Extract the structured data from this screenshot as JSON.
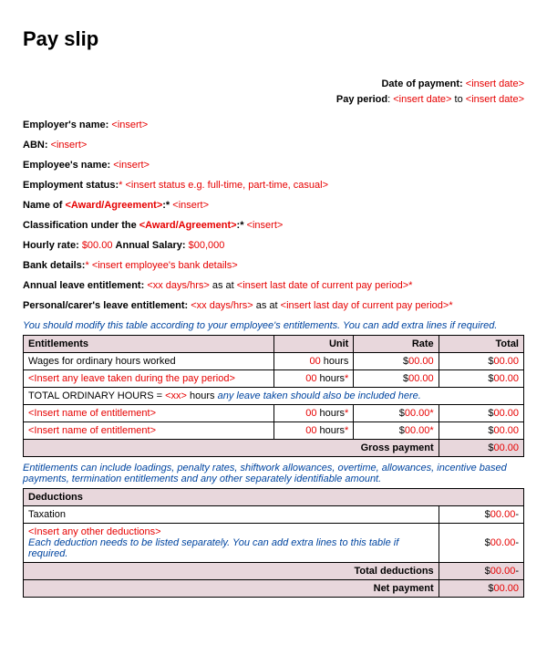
{
  "title": "Pay slip",
  "header": {
    "date_label": "Date of payment:",
    "date_value": "<insert date>",
    "period_label": "Pay period",
    "period_from": "<insert date>",
    "period_to_word": "to",
    "period_to": "<insert date>"
  },
  "fields": {
    "employer_label": "Employer's name:",
    "employer_value": "<insert>",
    "abn_label": "ABN:",
    "abn_value": "<insert>",
    "employee_label": "Employee's name:",
    "employee_value": "<insert>",
    "status_label": "Employment status:",
    "status_star": "*",
    "status_value": "<insert status e.g. full-time, part-time, casual>",
    "award_name_label_prefix": "Name of ",
    "award_name_label_red": "<Award/Agreement>",
    "award_name_label_suffix": ":*",
    "award_name_value": "<insert>",
    "class_label_prefix": "Classification under the ",
    "class_label_red": "<Award/Agreement>",
    "class_label_suffix": ":*",
    "class_value": "<insert>",
    "hourly_label": "Hourly rate:",
    "hourly_value": "$00.00",
    "salary_label": "Annual Salary:",
    "salary_value": "$00,000",
    "bank_label": "Bank details:",
    "bank_star": "*",
    "bank_value": "<insert employee's bank details>",
    "annual_leave_label": "Annual leave entitlement:",
    "annual_leave_xx": "<xx days/hrs>",
    "annual_leave_asat": " as at ",
    "annual_leave_date": "<insert last date of current pay period>",
    "annual_leave_star": "*",
    "personal_leave_label": "Personal/carer's leave entitlement:",
    "personal_leave_xx": "<xx days/hrs>",
    "personal_leave_asat": " as at ",
    "personal_leave_date": "<insert last day of current pay period>",
    "personal_leave_star": "*"
  },
  "note1": "You should modify this table according to your employee's entitlements. You can add extra lines if required.",
  "entitlements": {
    "h1": "Entitlements",
    "h2": "Unit",
    "h3": "Rate",
    "h4": "Total",
    "r1_label": "Wages for ordinary hours worked",
    "r1_unit_pre": "00",
    "r1_unit_suf": " hours",
    "r1_rate": "$00.00",
    "r1_total": "$00.00",
    "r2_label": "<Insert any leave taken during the pay period>",
    "r2_unit_pre": "00",
    "r2_unit_suf": " hours",
    "r2_star": "*",
    "r2_rate": "$00.00",
    "r2_total": "$00.00",
    "r3_prefix": "TOTAL ORDINARY HOURS = ",
    "r3_xx": "<xx>",
    "r3_mid": " hours ",
    "r3_blue": "any leave taken should also be included here.",
    "r4_label": "<Insert name of entitlement>",
    "r4_unit_pre": "00",
    "r4_unit_suf": " hours",
    "r4_star": "*",
    "r4_rate": "$00.00",
    "r4_rate_star": "*",
    "r4_total": "$00.00",
    "r5_label": "<Insert name of entitlement>",
    "r5_unit_pre": "00",
    "r5_unit_suf": " hours",
    "r5_star": "*",
    "r5_rate": "$00.00",
    "r5_rate_star": "*",
    "r5_total": "$00.00",
    "gross_label": "Gross payment",
    "gross_value": "$00.00"
  },
  "note2": "Entitlements can include loadings, penalty rates, shiftwork allowances, overtime, allowances, incentive based payments, termination entitlements and any other separately identifiable amount.",
  "deductions": {
    "h1": "Deductions",
    "r1_label": "Taxation",
    "r1_value": "$00.00",
    "r1_suffix": "-",
    "r2_label": "<Insert any other deductions>",
    "r2_note": "Each deduction needs to be listed separately. You can add extra lines to this table if required.",
    "r2_value": "$00.00",
    "r2_suffix": "-",
    "total_label": "Total deductions",
    "total_value": "$00.00",
    "total_suffix": "-",
    "net_label": "Net payment",
    "net_value": "$00.00"
  }
}
